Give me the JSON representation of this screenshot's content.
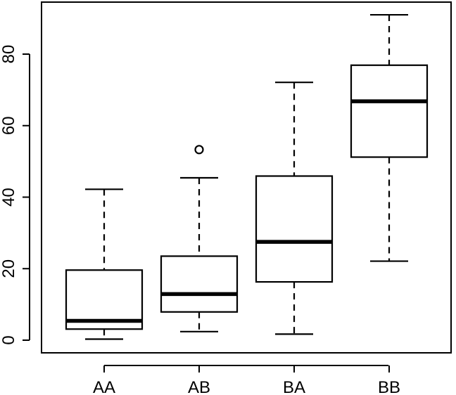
{
  "chart_data": {
    "type": "boxplot",
    "title": "",
    "xlabel": "",
    "ylabel": "",
    "ylim": [
      -4,
      94
    ],
    "y_ticks": [
      0,
      20,
      40,
      60,
      80
    ],
    "y_tick_labels": [
      "0",
      "20",
      "40",
      "60",
      "80"
    ],
    "categories": [
      "AA",
      "AB",
      "BA",
      "BB"
    ],
    "boxes": [
      {
        "category": "AA",
        "whisker_low": 0.3,
        "q1": 3.1,
        "median": 5.4,
        "q3": 19.6,
        "whisker_high": 42.2,
        "outliers": []
      },
      {
        "category": "AB",
        "whisker_low": 2.4,
        "q1": 7.9,
        "median": 12.9,
        "q3": 23.5,
        "whisker_high": 45.4,
        "outliers": [
          53.3
        ]
      },
      {
        "category": "BA",
        "whisker_low": 1.7,
        "q1": 16.3,
        "median": 27.5,
        "q3": 45.9,
        "whisker_high": 72.1,
        "outliers": []
      },
      {
        "category": "BB",
        "whisker_low": 22.1,
        "q1": 51.2,
        "median": 66.8,
        "q3": 76.9,
        "whisker_high": 91.0,
        "outliers": []
      }
    ],
    "grid": false,
    "colors": {
      "stroke": "#000000",
      "fill": "#ffffff"
    }
  }
}
